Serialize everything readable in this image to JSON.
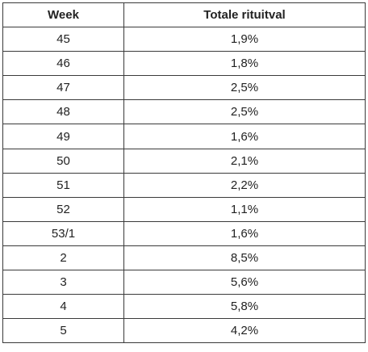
{
  "table": {
    "headers": [
      "Week",
      "Totale rituitval"
    ],
    "rows": [
      [
        "45",
        "1,9%"
      ],
      [
        "46",
        "1,8%"
      ],
      [
        "47",
        "2,5%"
      ],
      [
        "48",
        "2,5%"
      ],
      [
        "49",
        "1,6%"
      ],
      [
        "50",
        "2,1%"
      ],
      [
        "51",
        "2,2%"
      ],
      [
        "52",
        "1,1%"
      ],
      [
        "53/1",
        "1,6%"
      ],
      [
        "2",
        "8,5%"
      ],
      [
        "3",
        "5,6%"
      ],
      [
        "4",
        "5,8%"
      ],
      [
        "5",
        "4,2%"
      ]
    ]
  }
}
